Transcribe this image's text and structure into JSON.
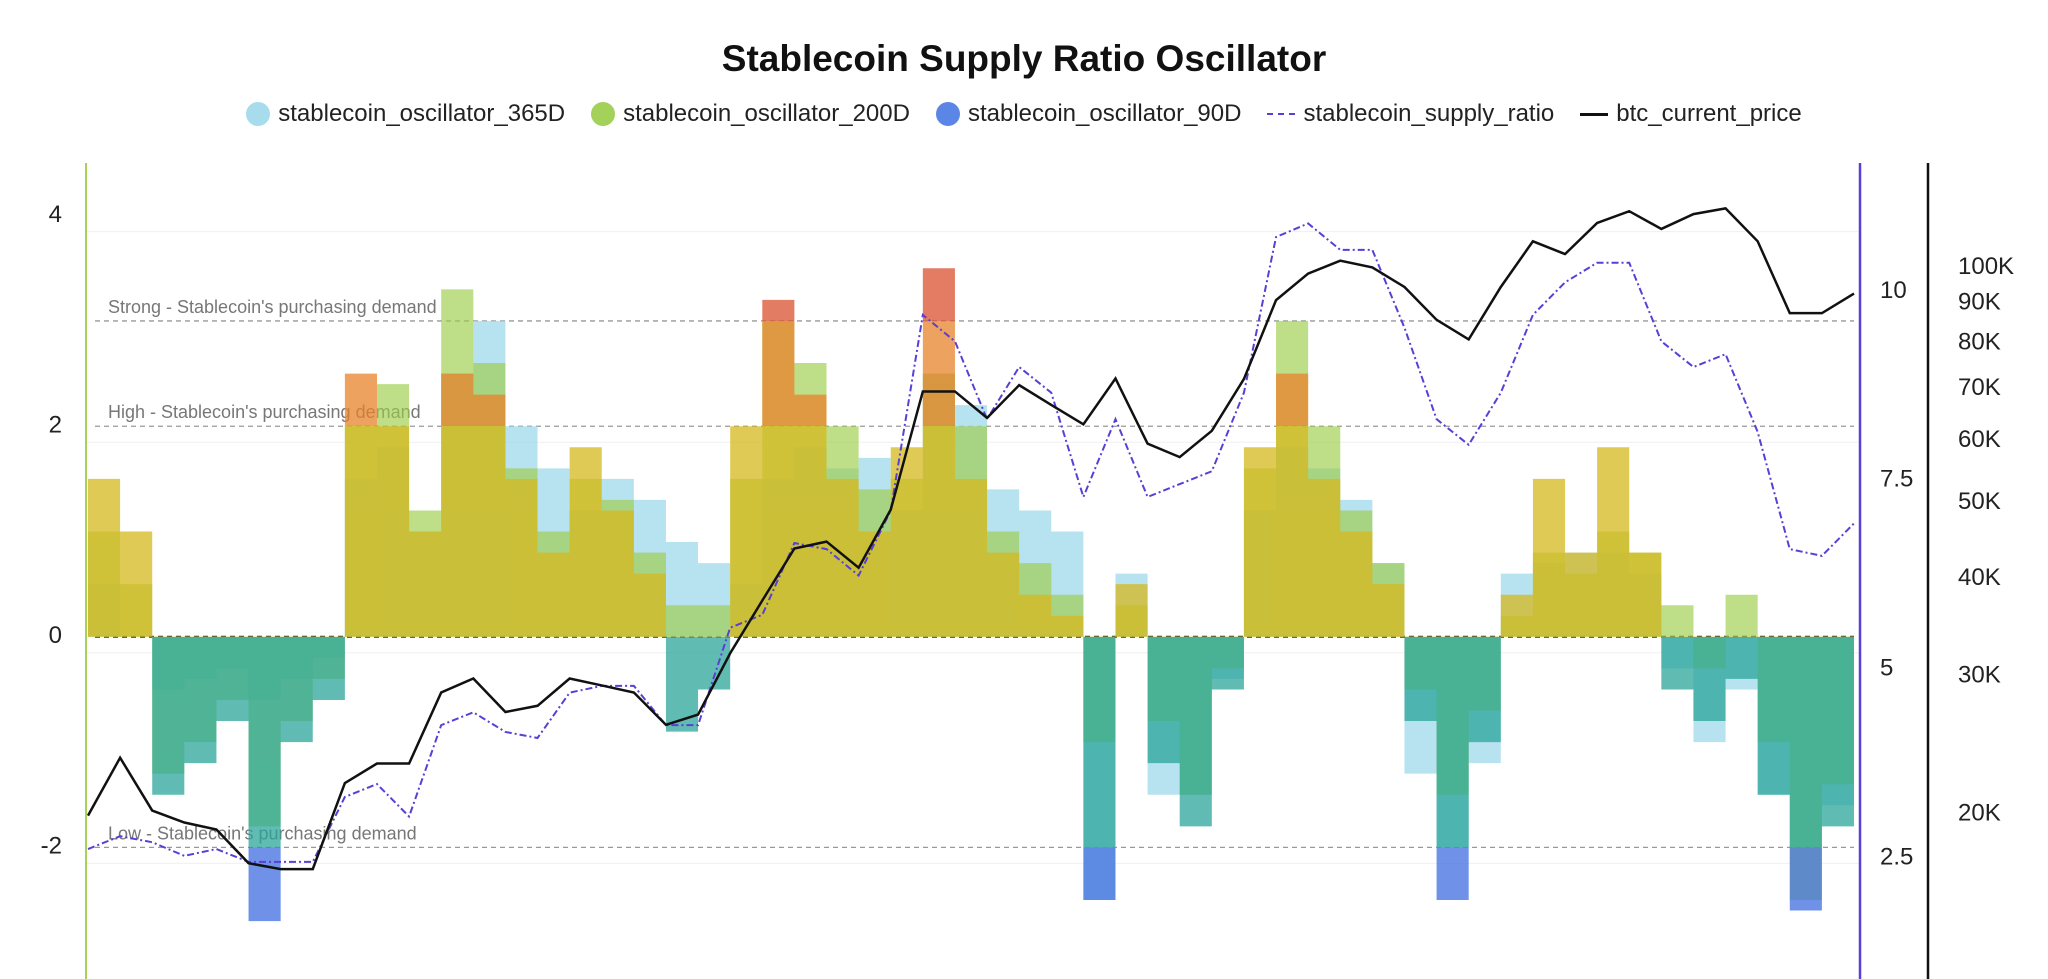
{
  "chart_data": {
    "type": "area",
    "title": "Stablecoin Supply Ratio Oscillator",
    "x": [
      0,
      1,
      2,
      3,
      4,
      5,
      6,
      7,
      8,
      9,
      10,
      11,
      12,
      13,
      14,
      15,
      16,
      17,
      18,
      19,
      20,
      21,
      22,
      23,
      24,
      25,
      26,
      27,
      28,
      29,
      30,
      31,
      32,
      33,
      34,
      35,
      36,
      37,
      38,
      39,
      40,
      41,
      42,
      43,
      44,
      45,
      46,
      47,
      48,
      49,
      50,
      51,
      52,
      53,
      54,
      55
    ],
    "axes": {
      "left": {
        "ticks": [
          4,
          2,
          0,
          -2
        ],
        "tick_labels": [
          "4",
          "2",
          "0",
          "-2"
        ],
        "range": [
          -3.25,
          4.5
        ]
      },
      "right_ratio": {
        "ticks": [
          10,
          7.5,
          5,
          2.5
        ],
        "tick_labels": [
          "10",
          "7.5",
          "5",
          "2.5"
        ],
        "range": [
          0.9,
          11.7
        ]
      },
      "right_price": {
        "scale": "log",
        "ticks": [
          100000,
          90000,
          80000,
          70000,
          60000,
          50000,
          40000,
          30000,
          20000
        ],
        "tick_labels": [
          "100K",
          "90K",
          "80K",
          "70K",
          "60K",
          "50K",
          "40K",
          "30K",
          "20K"
        ],
        "range": [
          12300,
          136000
        ]
      }
    },
    "reference_lines": [
      {
        "value": 3,
        "label": "Strong - Stablecoin's purchasing demand"
      },
      {
        "value": 2,
        "label": "High - Stablecoin's purchasing demand"
      },
      {
        "value": 0,
        "label": ""
      },
      {
        "value": -2,
        "label": "Low - Stablecoin's purchasing demand"
      }
    ],
    "legend_position": "top",
    "grid": true,
    "series": [
      {
        "name": "stablecoin_oscillator_365D",
        "type": "area",
        "axis": "left",
        "color": "#a6dcec",
        "values": [
          0.5,
          0,
          -0.5,
          -0.4,
          -0.3,
          -0.6,
          -0.4,
          -0.2,
          1.5,
          1.8,
          1.0,
          2.5,
          3.0,
          2.0,
          1.6,
          1.2,
          1.5,
          1.3,
          0.9,
          0.7,
          0.5,
          1.5,
          1.8,
          1.6,
          1.7,
          1.2,
          2.5,
          2.2,
          1.4,
          1.2,
          1.0,
          -2.5,
          0.6,
          -1.5,
          -1.5,
          -0.4,
          1.2,
          1.8,
          1.6,
          1.3,
          0.7,
          -1.3,
          -2.0,
          -1.2,
          0.6,
          0.7,
          0.8,
          0.8,
          0.6,
          -0.3,
          -1.0,
          -0.5,
          -1.5,
          -2.0,
          -1.6,
          -1.3
        ]
      },
      {
        "name": "stablecoin_oscillator_200D",
        "type": "area",
        "axis": "left",
        "color": "#a3d15a",
        "values": [
          1.0,
          0.5,
          -1.3,
          -1.0,
          -0.6,
          -1.8,
          -0.8,
          -0.4,
          2.0,
          2.4,
          1.2,
          3.3,
          2.6,
          1.6,
          1.0,
          1.5,
          1.3,
          0.8,
          0.3,
          0.3,
          1.5,
          3.0,
          2.6,
          2.0,
          1.4,
          1.5,
          2.5,
          2.0,
          1.0,
          0.7,
          0.4,
          -1.0,
          0.3,
          -0.8,
          -1.5,
          -0.3,
          1.6,
          3.0,
          2.0,
          1.2,
          0.7,
          -0.5,
          -1.5,
          -0.7,
          0.2,
          0.8,
          0.6,
          1.0,
          0.8,
          0.3,
          -0.3,
          0.4,
          -1.0,
          -2.5,
          -1.4,
          -1.0
        ]
      },
      {
        "name": "stablecoin_oscillator_90D",
        "type": "area",
        "axis": "left",
        "color": "#5b86e5",
        "values": [
          1.5,
          1.0,
          -1.5,
          -1.2,
          -0.8,
          -2.7,
          -1.0,
          -0.6,
          2.5,
          2.0,
          1.0,
          2.5,
          2.3,
          1.5,
          0.8,
          1.8,
          1.2,
          0.6,
          -0.9,
          -0.5,
          2.0,
          3.2,
          2.3,
          1.5,
          1.0,
          1.8,
          3.5,
          1.5,
          0.8,
          0.4,
          0.2,
          -2.5,
          0.5,
          -1.2,
          -1.8,
          -0.5,
          1.8,
          2.5,
          1.5,
          1.0,
          0.5,
          -0.8,
          -2.5,
          -1.0,
          0.4,
          1.5,
          0.8,
          1.8,
          0.8,
          -0.5,
          -0.8,
          -0.4,
          -1.5,
          -2.6,
          -1.8,
          -0.4
        ]
      },
      {
        "name": "stablecoin_supply_ratio",
        "type": "line",
        "style": "dash-dot",
        "axis": "right_ratio",
        "color": "#5a3fd6",
        "values": [
          2.62,
          2.79,
          2.71,
          2.53,
          2.62,
          2.45,
          2.45,
          2.45,
          3.31,
          3.48,
          3.05,
          4.26,
          4.43,
          4.17,
          4.09,
          4.69,
          4.78,
          4.78,
          4.26,
          4.26,
          5.55,
          5.72,
          6.67,
          6.59,
          6.24,
          7.1,
          9.69,
          9.34,
          8.31,
          9.0,
          8.66,
          7.28,
          8.31,
          7.28,
          7.45,
          7.62,
          8.66,
          10.72,
          10.9,
          10.55,
          10.55,
          9.52,
          8.31,
          7.97,
          8.66,
          9.69,
          10.12,
          10.38,
          10.38,
          9.34,
          9.0,
          9.17,
          8.14,
          6.59,
          6.5,
          6.93
        ]
      },
      {
        "name": "btc_current_price",
        "type": "line",
        "axis": "right_price",
        "color": "#111111",
        "values": [
          19900,
          23600,
          20200,
          19500,
          19100,
          17300,
          17000,
          17000,
          21900,
          23200,
          23200,
          28600,
          29800,
          27000,
          27500,
          29800,
          29200,
          28600,
          26000,
          26800,
          32100,
          37500,
          43700,
          44600,
          41300,
          49000,
          69400,
          69400,
          64200,
          70700,
          66700,
          63000,
          72100,
          59500,
          57200,
          61800,
          72000,
          90800,
          98200,
          102000,
          100000,
          94400,
          85700,
          80900,
          94400,
          108000,
          104000,
          114000,
          118000,
          112000,
          117000,
          119000,
          108000,
          87400,
          87400,
          92600
        ]
      }
    ]
  }
}
